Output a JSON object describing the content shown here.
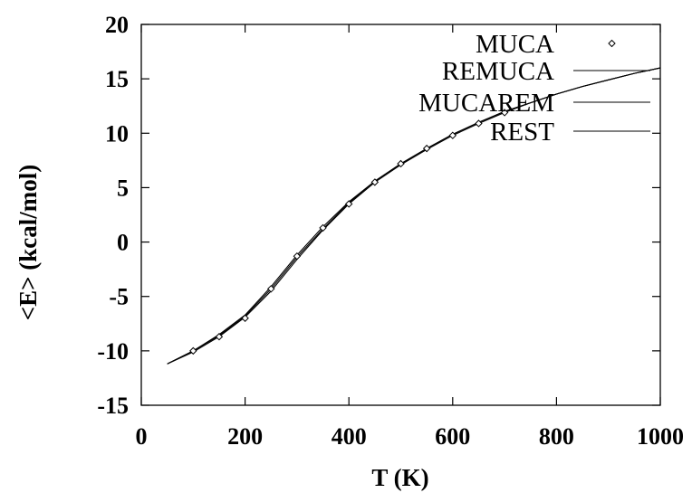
{
  "chart_data": {
    "type": "line",
    "title": "",
    "xlabel": "T (K)",
    "ylabel": "<E> (kcal/mol)",
    "xlim": [
      0,
      1000
    ],
    "ylim": [
      -15,
      20
    ],
    "xticks": [
      0,
      200,
      400,
      600,
      800,
      1000
    ],
    "yticks": [
      -15,
      -10,
      -5,
      0,
      5,
      10,
      15,
      20
    ],
    "grid": false,
    "legend": "top-right",
    "series": [
      {
        "name": "MUCA",
        "style": "points",
        "marker": "diamond",
        "x": [
          100,
          150,
          200,
          250,
          300,
          350,
          400,
          450,
          500,
          550,
          600,
          650,
          700
        ],
        "y": [
          -10.0,
          -8.7,
          -7.0,
          -4.3,
          -1.3,
          1.3,
          3.5,
          5.5,
          7.2,
          8.6,
          9.8,
          10.9,
          11.9
        ]
      },
      {
        "name": "REMUCA",
        "style": "line",
        "x": [
          50,
          100,
          150,
          200,
          250,
          300,
          350,
          400,
          450,
          500,
          550,
          600,
          650,
          700,
          750,
          800,
          850,
          900,
          950,
          1000
        ],
        "y": [
          -11.2,
          -10.0,
          -8.6,
          -6.8,
          -4.3,
          -1.4,
          1.2,
          3.6,
          5.6,
          7.2,
          8.6,
          9.9,
          11.0,
          12.0,
          12.8,
          13.6,
          14.3,
          14.9,
          15.5,
          16.0
        ]
      },
      {
        "name": "MUCAREM",
        "style": "line",
        "x": [
          50,
          100,
          150,
          200,
          250,
          300,
          350,
          400,
          450,
          500,
          550,
          600,
          650,
          700,
          750,
          800,
          850,
          900,
          950,
          1000
        ],
        "y": [
          -11.2,
          -10.0,
          -8.5,
          -6.7,
          -4.1,
          -1.2,
          1.4,
          3.7,
          5.6,
          7.2,
          8.6,
          9.9,
          11.0,
          12.0,
          12.8,
          13.6,
          14.3,
          14.9,
          15.5,
          16.0
        ]
      },
      {
        "name": "REST",
        "style": "line",
        "x": [
          50,
          100,
          150,
          200,
          250,
          300,
          350,
          400,
          450,
          500,
          550,
          600,
          650,
          700,
          750,
          800,
          850,
          900,
          950,
          1000
        ],
        "y": [
          -11.2,
          -10.1,
          -8.7,
          -6.9,
          -4.5,
          -1.6,
          1.1,
          3.5,
          5.5,
          7.1,
          8.5,
          9.8,
          10.9,
          11.9,
          12.8,
          13.6,
          14.3,
          14.9,
          15.5,
          16.0
        ]
      }
    ]
  }
}
